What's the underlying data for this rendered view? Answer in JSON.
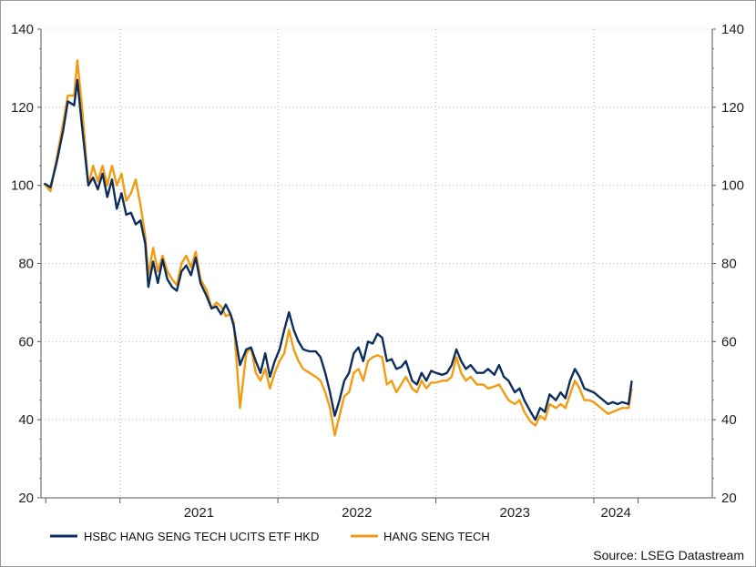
{
  "chart_data": {
    "type": "line",
    "title": "",
    "xlabel": "",
    "ylabel": "",
    "x_tick_labels": [
      "2021",
      "2022",
      "2023",
      "2024"
    ],
    "y_ticks": [
      20,
      40,
      60,
      80,
      100,
      120,
      140
    ],
    "ylim": [
      20,
      140
    ],
    "xlim": [
      2020.5,
      2024.75
    ],
    "grid": true,
    "dual_y_axis": true,
    "legend_position": "bottom-left",
    "source": "Source: LSEG Datastream",
    "series": [
      {
        "name": "HSBC HANG SENG TECH UCITS ETF HKD",
        "color": "#0d2d5e",
        "points": [
          [
            2020.52,
            100.5
          ],
          [
            2020.56,
            99.5
          ],
          [
            2020.6,
            106
          ],
          [
            2020.64,
            114
          ],
          [
            2020.67,
            121.5
          ],
          [
            2020.71,
            120.5
          ],
          [
            2020.73,
            127
          ],
          [
            2020.76,
            115
          ],
          [
            2020.8,
            100
          ],
          [
            2020.83,
            102
          ],
          [
            2020.86,
            99
          ],
          [
            2020.89,
            103
          ],
          [
            2020.92,
            97
          ],
          [
            2020.95,
            101.5
          ],
          [
            2020.98,
            94
          ],
          [
            2021.01,
            98
          ],
          [
            2021.04,
            92.5
          ],
          [
            2021.07,
            93
          ],
          [
            2021.1,
            90
          ],
          [
            2021.13,
            91
          ],
          [
            2021.16,
            85
          ],
          [
            2021.18,
            74
          ],
          [
            2021.21,
            80.5
          ],
          [
            2021.24,
            75
          ],
          [
            2021.27,
            81
          ],
          [
            2021.3,
            76
          ],
          [
            2021.33,
            74
          ],
          [
            2021.36,
            73
          ],
          [
            2021.39,
            78
          ],
          [
            2021.42,
            79.5
          ],
          [
            2021.45,
            77
          ],
          [
            2021.48,
            81.5
          ],
          [
            2021.51,
            75
          ],
          [
            2021.55,
            71.5
          ],
          [
            2021.58,
            68.5
          ],
          [
            2021.61,
            69
          ],
          [
            2021.64,
            67
          ],
          [
            2021.67,
            69.5
          ],
          [
            2021.7,
            67
          ],
          [
            2021.72,
            64
          ],
          [
            2021.76,
            54
          ],
          [
            2021.8,
            58
          ],
          [
            2021.83,
            58.5
          ],
          [
            2021.86,
            55
          ],
          [
            2021.89,
            52
          ],
          [
            2021.92,
            57
          ],
          [
            2021.95,
            51
          ],
          [
            2021.98,
            55
          ],
          [
            2022.01,
            58
          ],
          [
            2022.04,
            63
          ],
          [
            2022.07,
            67.5
          ],
          [
            2022.1,
            63
          ],
          [
            2022.13,
            60
          ],
          [
            2022.16,
            58
          ],
          [
            2022.2,
            57.5
          ],
          [
            2022.24,
            57.5
          ],
          [
            2022.27,
            56
          ],
          [
            2022.3,
            52
          ],
          [
            2022.33,
            47
          ],
          [
            2022.36,
            41
          ],
          [
            2022.39,
            45
          ],
          [
            2022.42,
            50
          ],
          [
            2022.45,
            52
          ],
          [
            2022.48,
            57
          ],
          [
            2022.51,
            58.5
          ],
          [
            2022.54,
            55
          ],
          [
            2022.57,
            60
          ],
          [
            2022.6,
            59.5
          ],
          [
            2022.63,
            62
          ],
          [
            2022.66,
            61
          ],
          [
            2022.69,
            55
          ],
          [
            2022.72,
            55.5
          ],
          [
            2022.75,
            53
          ],
          [
            2022.78,
            53.5
          ],
          [
            2022.81,
            55
          ],
          [
            2022.85,
            50
          ],
          [
            2022.88,
            49
          ],
          [
            2022.91,
            52
          ],
          [
            2022.94,
            50
          ],
          [
            2022.97,
            52.5
          ],
          [
            2023.0,
            52
          ],
          [
            2023.04,
            51.5
          ],
          [
            2023.07,
            52
          ],
          [
            2023.1,
            54
          ],
          [
            2023.13,
            58
          ],
          [
            2023.16,
            55
          ],
          [
            2023.19,
            53
          ],
          [
            2023.22,
            54
          ],
          [
            2023.26,
            52
          ],
          [
            2023.3,
            52
          ],
          [
            2023.33,
            53
          ],
          [
            2023.37,
            51.5
          ],
          [
            2023.4,
            54
          ],
          [
            2023.43,
            51
          ],
          [
            2023.46,
            50
          ],
          [
            2023.5,
            47
          ],
          [
            2023.53,
            48
          ],
          [
            2023.56,
            45
          ],
          [
            2023.6,
            42
          ],
          [
            2023.63,
            40
          ],
          [
            2023.66,
            43
          ],
          [
            2023.69,
            42
          ],
          [
            2023.72,
            46.5
          ],
          [
            2023.76,
            45
          ],
          [
            2023.79,
            47
          ],
          [
            2023.82,
            45.5
          ],
          [
            2023.85,
            50
          ],
          [
            2023.88,
            53
          ],
          [
            2023.91,
            51
          ],
          [
            2023.94,
            48
          ],
          [
            2023.97,
            47.5
          ],
          [
            2024.0,
            47
          ],
          [
            2024.03,
            46
          ],
          [
            2024.06,
            45
          ],
          [
            2024.09,
            44
          ],
          [
            2024.12,
            44.5
          ],
          [
            2024.15,
            44
          ],
          [
            2024.18,
            44.5
          ],
          [
            2024.22,
            44
          ],
          [
            2024.24,
            50
          ]
        ]
      },
      {
        "name": "HANG SENG TECH",
        "color": "#f39c12",
        "points": [
          [
            2020.52,
            100.5
          ],
          [
            2020.56,
            98.5
          ],
          [
            2020.6,
            107
          ],
          [
            2020.64,
            116
          ],
          [
            2020.67,
            123
          ],
          [
            2020.71,
            123
          ],
          [
            2020.73,
            132
          ],
          [
            2020.76,
            120
          ],
          [
            2020.8,
            100
          ],
          [
            2020.83,
            105
          ],
          [
            2020.86,
            101
          ],
          [
            2020.89,
            105
          ],
          [
            2020.92,
            100
          ],
          [
            2020.95,
            105
          ],
          [
            2020.98,
            100
          ],
          [
            2021.01,
            103
          ],
          [
            2021.04,
            96
          ],
          [
            2021.07,
            98
          ],
          [
            2021.1,
            101.5
          ],
          [
            2021.13,
            95
          ],
          [
            2021.16,
            87
          ],
          [
            2021.18,
            77
          ],
          [
            2021.21,
            84
          ],
          [
            2021.24,
            78
          ],
          [
            2021.27,
            82
          ],
          [
            2021.3,
            78
          ],
          [
            2021.33,
            76
          ],
          [
            2021.36,
            74.5
          ],
          [
            2021.39,
            80
          ],
          [
            2021.42,
            82
          ],
          [
            2021.45,
            79
          ],
          [
            2021.48,
            83
          ],
          [
            2021.51,
            76
          ],
          [
            2021.55,
            73
          ],
          [
            2021.58,
            68.5
          ],
          [
            2021.61,
            70
          ],
          [
            2021.64,
            69
          ],
          [
            2021.67,
            66.5
          ],
          [
            2021.7,
            67
          ],
          [
            2021.72,
            65
          ],
          [
            2021.76,
            43
          ],
          [
            2021.8,
            57
          ],
          [
            2021.83,
            58.5
          ],
          [
            2021.86,
            52
          ],
          [
            2021.89,
            50
          ],
          [
            2021.92,
            53
          ],
          [
            2021.95,
            48
          ],
          [
            2021.98,
            52
          ],
          [
            2022.01,
            55
          ],
          [
            2022.04,
            57
          ],
          [
            2022.07,
            63
          ],
          [
            2022.1,
            58
          ],
          [
            2022.13,
            55
          ],
          [
            2022.16,
            53
          ],
          [
            2022.2,
            52
          ],
          [
            2022.24,
            51
          ],
          [
            2022.27,
            50
          ],
          [
            2022.3,
            47
          ],
          [
            2022.33,
            43
          ],
          [
            2022.36,
            36
          ],
          [
            2022.39,
            41
          ],
          [
            2022.42,
            46
          ],
          [
            2022.45,
            47
          ],
          [
            2022.48,
            52
          ],
          [
            2022.51,
            53
          ],
          [
            2022.54,
            50
          ],
          [
            2022.57,
            55
          ],
          [
            2022.6,
            56
          ],
          [
            2022.63,
            56.5
          ],
          [
            2022.66,
            56
          ],
          [
            2022.69,
            49
          ],
          [
            2022.72,
            50
          ],
          [
            2022.75,
            47
          ],
          [
            2022.78,
            49
          ],
          [
            2022.81,
            51
          ],
          [
            2022.85,
            48
          ],
          [
            2022.88,
            47
          ],
          [
            2022.91,
            50
          ],
          [
            2022.94,
            48
          ],
          [
            2022.97,
            49.5
          ],
          [
            2023.0,
            49.5
          ],
          [
            2023.04,
            50
          ],
          [
            2023.07,
            50
          ],
          [
            2023.1,
            51
          ],
          [
            2023.13,
            56
          ],
          [
            2023.16,
            52
          ],
          [
            2023.19,
            50
          ],
          [
            2023.22,
            51
          ],
          [
            2023.26,
            49
          ],
          [
            2023.3,
            49
          ],
          [
            2023.33,
            48
          ],
          [
            2023.37,
            48.5
          ],
          [
            2023.4,
            49
          ],
          [
            2023.43,
            47
          ],
          [
            2023.46,
            45
          ],
          [
            2023.5,
            44
          ],
          [
            2023.53,
            45
          ],
          [
            2023.56,
            42
          ],
          [
            2023.6,
            39.5
          ],
          [
            2023.63,
            38.5
          ],
          [
            2023.66,
            41
          ],
          [
            2023.69,
            40
          ],
          [
            2023.72,
            44
          ],
          [
            2023.76,
            43
          ],
          [
            2023.79,
            44
          ],
          [
            2023.82,
            43
          ],
          [
            2023.85,
            46.5
          ],
          [
            2023.88,
            50
          ],
          [
            2023.91,
            48
          ],
          [
            2023.94,
            45
          ],
          [
            2023.97,
            45
          ],
          [
            2024.0,
            44.5
          ],
          [
            2024.03,
            43.5
          ],
          [
            2024.06,
            42.5
          ],
          [
            2024.09,
            41.5
          ],
          [
            2024.12,
            42
          ],
          [
            2024.15,
            42.5
          ],
          [
            2024.18,
            43
          ],
          [
            2024.22,
            43
          ],
          [
            2024.24,
            48
          ]
        ]
      }
    ]
  }
}
